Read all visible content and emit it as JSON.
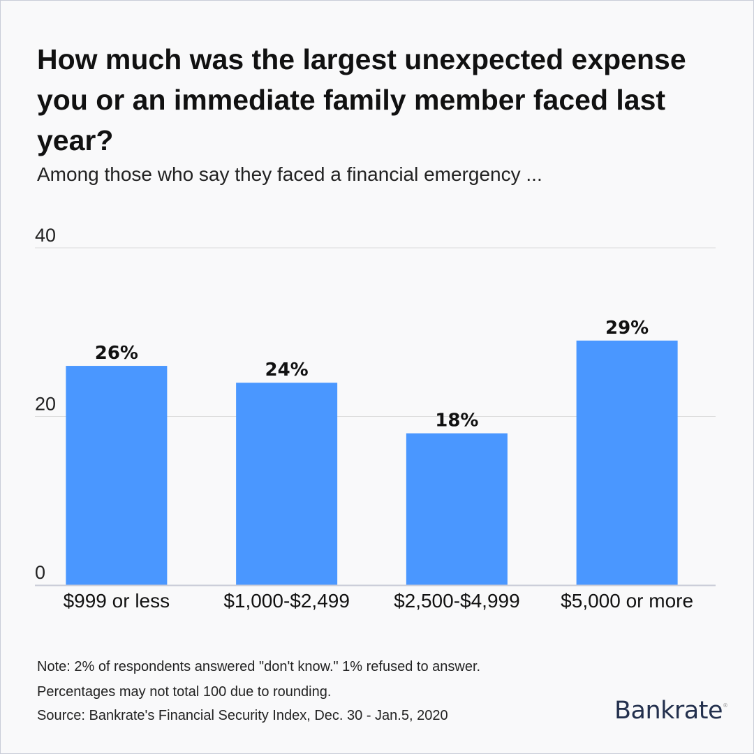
{
  "title": "How much was the largest unexpected expense you or an immediate family member faced last year?",
  "subtitle": "Among those who say they faced a financial emergency ...",
  "notes": [
    "Note: 2% of respondents answered \"don't know.\" 1% refused to answer.",
    "Percentages may not total 100 due to rounding.",
    "Source: Bankrate's Financial Security Index, Dec. 30 - Jan.5, 2020"
  ],
  "logo": "Bankrate",
  "chart_data": {
    "type": "bar",
    "categories": [
      "$999 or less",
      "$1,000-$2,499",
      "$2,500-$4,999",
      "$5,000 or more"
    ],
    "values": [
      26,
      24,
      18,
      29
    ],
    "data_labels": [
      "26%",
      "24%",
      "18%",
      "29%"
    ],
    "ylim": [
      0,
      40
    ],
    "yticks": [
      0,
      20,
      40
    ],
    "grid": true,
    "bar_color": "#4a97ff"
  }
}
